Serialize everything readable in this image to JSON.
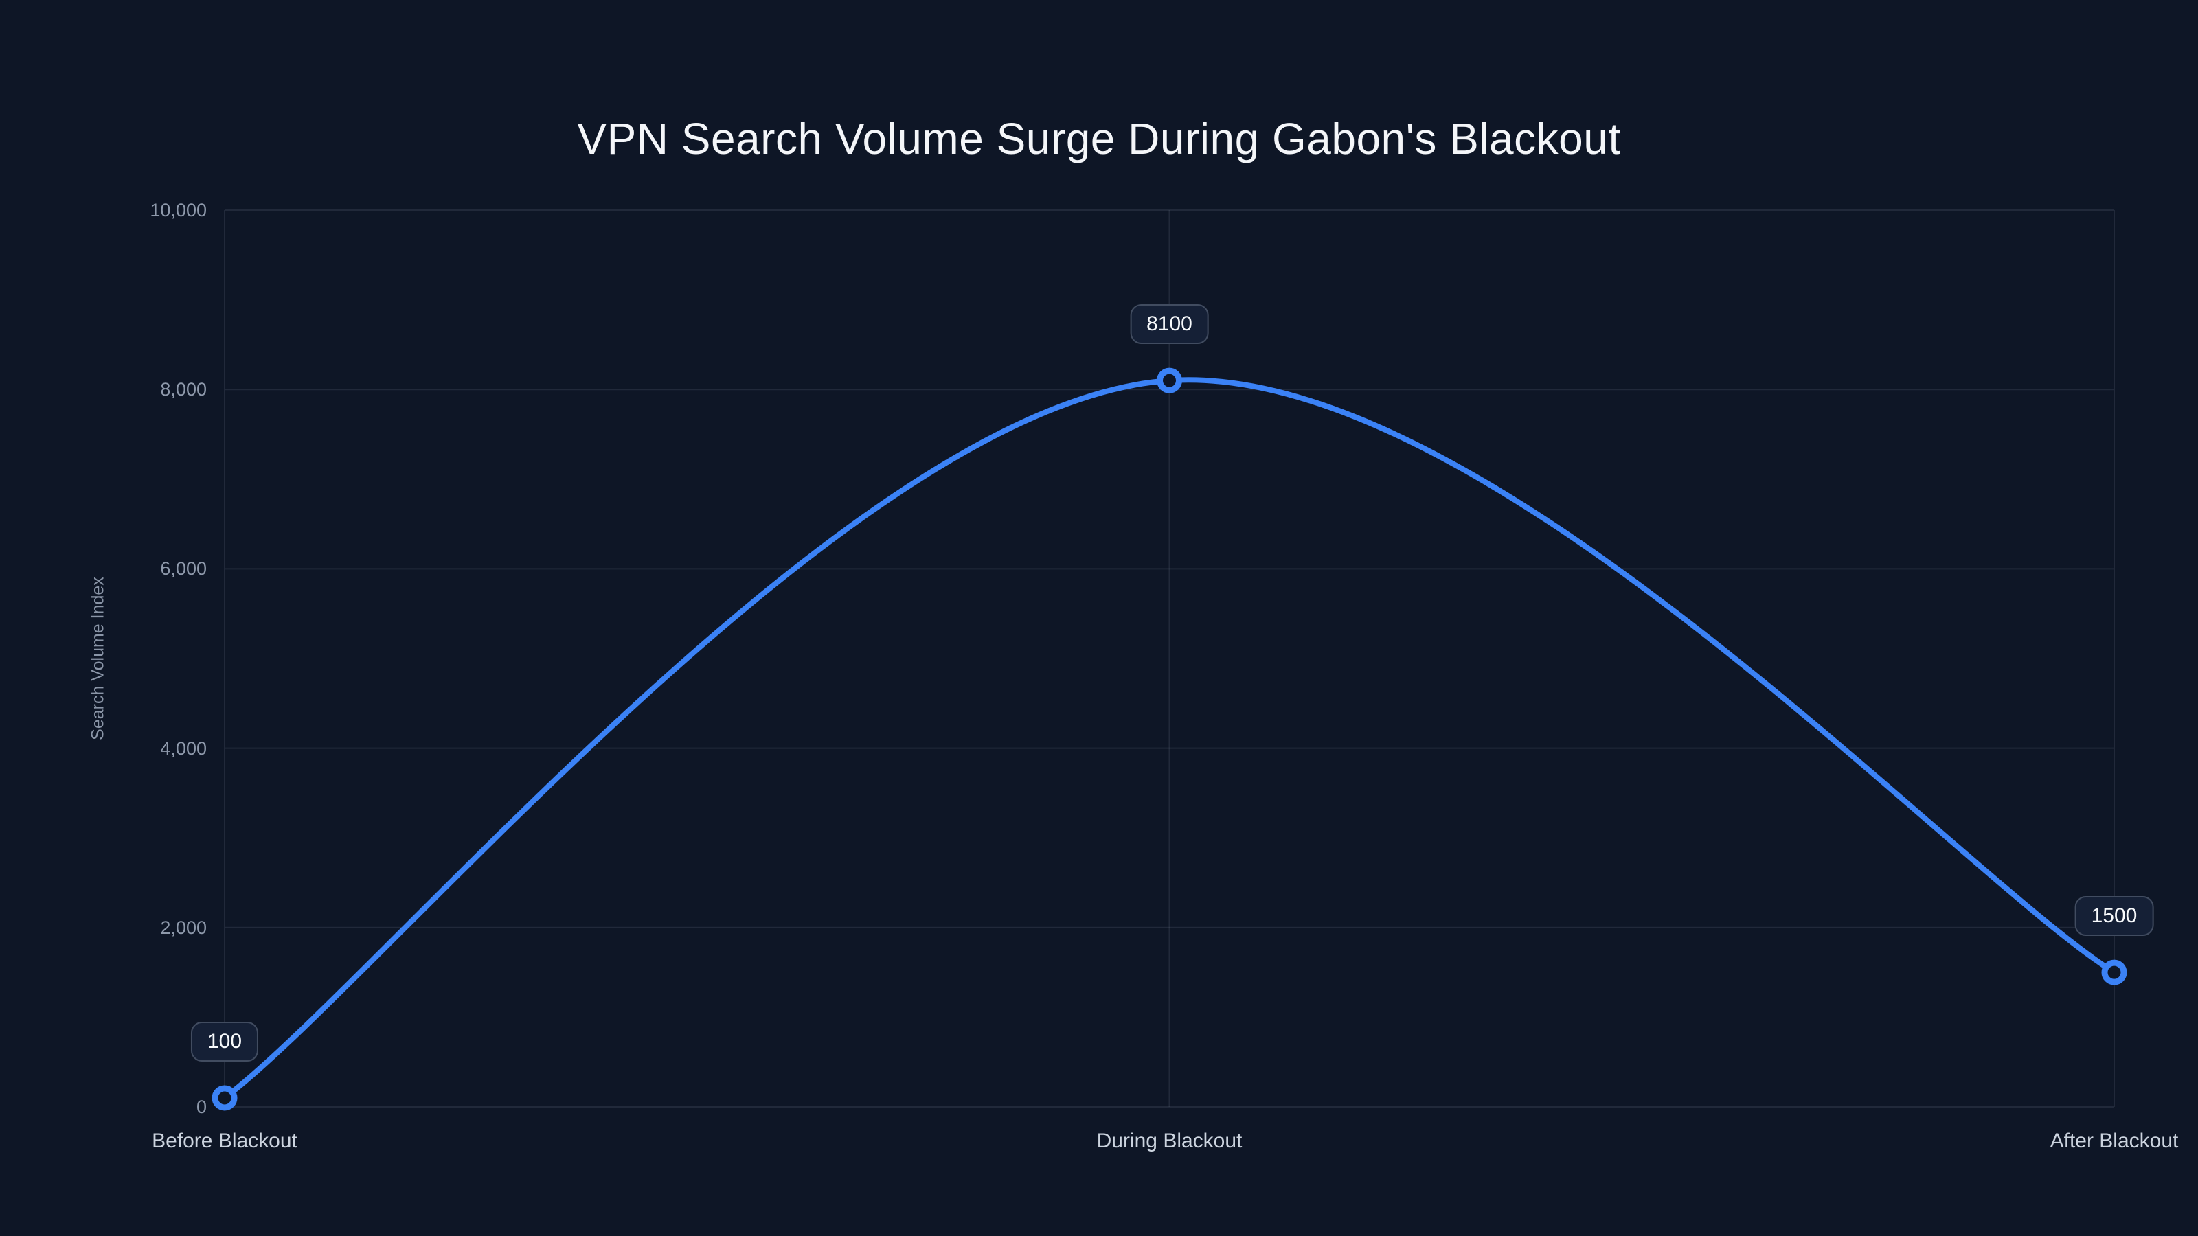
{
  "colors": {
    "background": "#0e1626",
    "line": "#3b82f6",
    "grid": "rgba(148,163,184,0.14)",
    "badge_bg": "#152036",
    "badge_border": "#414c60",
    "badge_text": "#f8fafc",
    "title_text": "#f4f6f9",
    "tick_text": "#8e99ab",
    "category_text": "#ccd4df",
    "ylabel_text": "#8a95a7"
  },
  "chart_data": {
    "type": "line",
    "title": "VPN Search Volume Surge During Gabon's Blackout",
    "categories": [
      "Before Blackout",
      "During Blackout",
      "After Blackout"
    ],
    "values": [
      100,
      8100,
      1500
    ],
    "point_labels": [
      "100",
      "8100",
      "1500"
    ],
    "xlabel": "",
    "ylabel": "Search Volume Index",
    "ylim": [
      0,
      10000
    ],
    "yticks": [
      0,
      2000,
      4000,
      6000,
      8000,
      10000
    ],
    "ytick_labels": [
      "0",
      "2,000",
      "4,000",
      "6,000",
      "8,000",
      "10,000"
    ],
    "grid": true,
    "legend": false,
    "line_style": "smooth"
  }
}
